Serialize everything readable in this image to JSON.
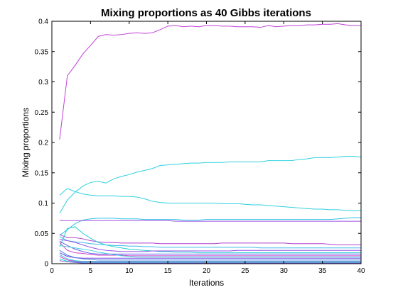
{
  "chart_data": {
    "type": "line",
    "title": "Mixing proportions as 40 Gibbs iterations",
    "xlabel": "Iterations",
    "ylabel": "Mixing proportions",
    "xlim": [
      0,
      40
    ],
    "ylim": [
      0,
      0.4
    ],
    "xticks": [
      0,
      5,
      10,
      15,
      20,
      25,
      30,
      35,
      40
    ],
    "yticks": [
      0,
      0.05,
      0.1,
      0.15,
      0.2,
      0.25,
      0.3,
      0.35,
      0.4
    ],
    "grid": false,
    "x": [
      1,
      2,
      3,
      4,
      5,
      6,
      7,
      8,
      9,
      10,
      11,
      12,
      13,
      14,
      15,
      16,
      17,
      18,
      19,
      20,
      21,
      22,
      23,
      24,
      25,
      26,
      27,
      28,
      29,
      30,
      31,
      32,
      33,
      34,
      35,
      36,
      37,
      38,
      39,
      40
    ],
    "series": [
      {
        "color": "#c040d8",
        "values": [
          0.205,
          0.31,
          0.327,
          0.346,
          0.36,
          0.375,
          0.378,
          0.377,
          0.378,
          0.38,
          0.381,
          0.38,
          0.381,
          0.386,
          0.392,
          0.393,
          0.391,
          0.392,
          0.391,
          0.393,
          0.393,
          0.392,
          0.392,
          0.391,
          0.391,
          0.391,
          0.39,
          0.393,
          0.391,
          0.392,
          0.393,
          0.393,
          0.394,
          0.394,
          0.395,
          0.395,
          0.396,
          0.394,
          0.393,
          0.393
        ]
      },
      {
        "color": "#30d0e0",
        "values": [
          0.083,
          0.105,
          0.118,
          0.128,
          0.134,
          0.136,
          0.133,
          0.14,
          0.144,
          0.147,
          0.151,
          0.154,
          0.157,
          0.162,
          0.163,
          0.164,
          0.165,
          0.166,
          0.166,
          0.167,
          0.167,
          0.167,
          0.168,
          0.168,
          0.168,
          0.168,
          0.168,
          0.17,
          0.17,
          0.17,
          0.17,
          0.172,
          0.173,
          0.175,
          0.175,
          0.175,
          0.176,
          0.177,
          0.177,
          0.176
        ]
      },
      {
        "color": "#30d0e0",
        "values": [
          0.113,
          0.124,
          0.119,
          0.115,
          0.113,
          0.112,
          0.112,
          0.112,
          0.111,
          0.111,
          0.11,
          0.107,
          0.103,
          0.101,
          0.1,
          0.1,
          0.1,
          0.1,
          0.1,
          0.1,
          0.1,
          0.099,
          0.099,
          0.099,
          0.098,
          0.097,
          0.097,
          0.096,
          0.095,
          0.094,
          0.093,
          0.092,
          0.091,
          0.09,
          0.09,
          0.089,
          0.089,
          0.088,
          0.087,
          0.088
        ]
      },
      {
        "color": "#30c0e8",
        "values": [
          0.047,
          0.056,
          0.066,
          0.072,
          0.074,
          0.075,
          0.075,
          0.075,
          0.074,
          0.074,
          0.074,
          0.073,
          0.073,
          0.073,
          0.073,
          0.073,
          0.072,
          0.072,
          0.072,
          0.073,
          0.073,
          0.073,
          0.073,
          0.073,
          0.073,
          0.073,
          0.073,
          0.073,
          0.073,
          0.073,
          0.073,
          0.073,
          0.073,
          0.073,
          0.073,
          0.073,
          0.074,
          0.075,
          0.076,
          0.076
        ]
      },
      {
        "color": "#a050e0",
        "values": [
          0.071,
          0.071,
          0.071,
          0.071,
          0.071,
          0.071,
          0.071,
          0.071,
          0.071,
          0.071,
          0.071,
          0.071,
          0.071,
          0.071,
          0.071,
          0.07,
          0.07,
          0.07,
          0.07,
          0.07,
          0.07,
          0.07,
          0.07,
          0.07,
          0.07,
          0.07,
          0.07,
          0.07,
          0.07,
          0.07,
          0.07,
          0.07,
          0.07,
          0.07,
          0.07,
          0.07,
          0.07,
          0.07,
          0.07,
          0.07
        ]
      },
      {
        "color": "#b040d0",
        "values": [
          0.048,
          0.043,
          0.043,
          0.041,
          0.038,
          0.036,
          0.035,
          0.035,
          0.034,
          0.034,
          0.034,
          0.034,
          0.034,
          0.033,
          0.033,
          0.033,
          0.033,
          0.033,
          0.033,
          0.033,
          0.033,
          0.034,
          0.034,
          0.034,
          0.034,
          0.034,
          0.034,
          0.034,
          0.034,
          0.034,
          0.033,
          0.033,
          0.033,
          0.033,
          0.033,
          0.032,
          0.031,
          0.031,
          0.031,
          0.031
        ]
      },
      {
        "color": "#40b8e8",
        "values": [
          0.045,
          0.038,
          0.036,
          0.035,
          0.033,
          0.032,
          0.031,
          0.03,
          0.03,
          0.029,
          0.029,
          0.028,
          0.028,
          0.027,
          0.027,
          0.027,
          0.027,
          0.027,
          0.027,
          0.027,
          0.027,
          0.027,
          0.027,
          0.027,
          0.027,
          0.027,
          0.026,
          0.026,
          0.026,
          0.026,
          0.026,
          0.026,
          0.026,
          0.026,
          0.026,
          0.026,
          0.026,
          0.026,
          0.026,
          0.026
        ]
      },
      {
        "color": "#20d0d0",
        "values": [
          0.028,
          0.058,
          0.061,
          0.05,
          0.042,
          0.035,
          0.031,
          0.028,
          0.026,
          0.024,
          0.023,
          0.022,
          0.021,
          0.02,
          0.02,
          0.019,
          0.019,
          0.019,
          0.018,
          0.018,
          0.018,
          0.018,
          0.018,
          0.018,
          0.018,
          0.018,
          0.018,
          0.018,
          0.018,
          0.018,
          0.018,
          0.018,
          0.018,
          0.018,
          0.018,
          0.018,
          0.018,
          0.018,
          0.018,
          0.018
        ]
      },
      {
        "color": "#9050e8",
        "values": [
          0.04,
          0.038,
          0.035,
          0.031,
          0.027,
          0.024,
          0.022,
          0.021,
          0.02,
          0.02,
          0.02,
          0.02,
          0.021,
          0.021,
          0.021,
          0.021,
          0.021,
          0.021,
          0.021,
          0.021,
          0.021,
          0.021,
          0.021,
          0.022,
          0.022,
          0.022,
          0.022,
          0.022,
          0.022,
          0.022,
          0.022,
          0.022,
          0.022,
          0.022,
          0.022,
          0.022,
          0.022,
          0.022,
          0.022,
          0.022
        ]
      },
      {
        "color": "#6060e8",
        "values": [
          0.037,
          0.03,
          0.024,
          0.02,
          0.017,
          0.016,
          0.016,
          0.016,
          0.016,
          0.016,
          0.016,
          0.016,
          0.016,
          0.016,
          0.016,
          0.016,
          0.016,
          0.016,
          0.016,
          0.016,
          0.016,
          0.016,
          0.016,
          0.016,
          0.016,
          0.016,
          0.016,
          0.016,
          0.016,
          0.016,
          0.016,
          0.016,
          0.016,
          0.016,
          0.016,
          0.016,
          0.016,
          0.016,
          0.016,
          0.016
        ]
      },
      {
        "color": "#d040c8",
        "values": [
          0.035,
          0.022,
          0.018,
          0.017,
          0.015,
          0.014,
          0.014,
          0.014,
          0.014,
          0.013,
          0.013,
          0.013,
          0.013,
          0.013,
          0.013,
          0.013,
          0.013,
          0.013,
          0.013,
          0.013,
          0.013,
          0.013,
          0.013,
          0.013,
          0.013,
          0.013,
          0.013,
          0.013,
          0.013,
          0.013,
          0.013,
          0.013,
          0.013,
          0.013,
          0.013,
          0.013,
          0.013,
          0.013,
          0.013,
          0.013
        ]
      },
      {
        "color": "#40d0e0",
        "values": [
          0.03,
          0.028,
          0.026,
          0.024,
          0.022,
          0.019,
          0.017,
          0.015,
          0.013,
          0.012,
          0.011,
          0.011,
          0.011,
          0.011,
          0.011,
          0.011,
          0.011,
          0.011,
          0.011,
          0.011,
          0.011,
          0.011,
          0.011,
          0.011,
          0.011,
          0.011,
          0.011,
          0.011,
          0.011,
          0.011,
          0.011,
          0.011,
          0.011,
          0.011,
          0.011,
          0.011,
          0.011,
          0.011,
          0.011,
          0.011
        ]
      },
      {
        "color": "#7040e0",
        "values": [
          0.018,
          0.012,
          0.01,
          0.009,
          0.009,
          0.009,
          0.009,
          0.009,
          0.009,
          0.009,
          0.009,
          0.009,
          0.009,
          0.009,
          0.009,
          0.009,
          0.009,
          0.009,
          0.009,
          0.009,
          0.009,
          0.009,
          0.009,
          0.009,
          0.009,
          0.009,
          0.009,
          0.009,
          0.009,
          0.009,
          0.009,
          0.009,
          0.009,
          0.009,
          0.009,
          0.009,
          0.009,
          0.009,
          0.009,
          0.009
        ]
      },
      {
        "color": "#5080e8",
        "values": [
          0.022,
          0.014,
          0.01,
          0.008,
          0.007,
          0.006,
          0.006,
          0.006,
          0.006,
          0.006,
          0.006,
          0.006,
          0.006,
          0.006,
          0.006,
          0.006,
          0.006,
          0.006,
          0.006,
          0.006,
          0.006,
          0.006,
          0.006,
          0.006,
          0.006,
          0.006,
          0.006,
          0.006,
          0.006,
          0.006,
          0.006,
          0.006,
          0.006,
          0.006,
          0.006,
          0.006,
          0.006,
          0.006,
          0.006,
          0.006
        ]
      },
      {
        "color": "#30c8d8",
        "values": [
          0.015,
          0.008,
          0.005,
          0.004,
          0.004,
          0.004,
          0.004,
          0.004,
          0.004,
          0.004,
          0.004,
          0.004,
          0.004,
          0.004,
          0.004,
          0.004,
          0.004,
          0.004,
          0.004,
          0.004,
          0.004,
          0.004,
          0.004,
          0.004,
          0.004,
          0.004,
          0.004,
          0.004,
          0.004,
          0.004,
          0.004,
          0.004,
          0.004,
          0.004,
          0.004,
          0.004,
          0.004,
          0.004,
          0.004,
          0.004
        ]
      },
      {
        "color": "#c048d0",
        "values": [
          0.012,
          0.006,
          0.004,
          0.003,
          0.003,
          0.003,
          0.003,
          0.003,
          0.003,
          0.003,
          0.003,
          0.003,
          0.003,
          0.003,
          0.003,
          0.003,
          0.003,
          0.003,
          0.003,
          0.003,
          0.003,
          0.003,
          0.003,
          0.003,
          0.003,
          0.003,
          0.003,
          0.003,
          0.003,
          0.003,
          0.003,
          0.003,
          0.003,
          0.003,
          0.003,
          0.003,
          0.003,
          0.003,
          0.003,
          0.003
        ]
      },
      {
        "color": "#20d8c8",
        "values": [
          0.008,
          0.004,
          0.003,
          0.002,
          0.002,
          0.002,
          0.002,
          0.002,
          0.002,
          0.002,
          0.002,
          0.002,
          0.002,
          0.002,
          0.002,
          0.002,
          0.002,
          0.002,
          0.002,
          0.002,
          0.002,
          0.002,
          0.002,
          0.002,
          0.002,
          0.002,
          0.002,
          0.002,
          0.002,
          0.002,
          0.002,
          0.002,
          0.002,
          0.002,
          0.002,
          0.002,
          0.002,
          0.002,
          0.002,
          0.002
        ]
      },
      {
        "color": "#8050e8",
        "values": [
          0.005,
          0.003,
          0.002,
          0.001,
          0.001,
          0.001,
          0.001,
          0.001,
          0.001,
          0.001,
          0.001,
          0.001,
          0.001,
          0.001,
          0.001,
          0.001,
          0.001,
          0.001,
          0.001,
          0.001,
          0.001,
          0.001,
          0.001,
          0.001,
          0.001,
          0.001,
          0.001,
          0.001,
          0.001,
          0.001,
          0.001,
          0.001,
          0.001,
          0.001,
          0.001,
          0.001,
          0.001,
          0.001,
          0.001,
          0.001
        ]
      }
    ]
  }
}
